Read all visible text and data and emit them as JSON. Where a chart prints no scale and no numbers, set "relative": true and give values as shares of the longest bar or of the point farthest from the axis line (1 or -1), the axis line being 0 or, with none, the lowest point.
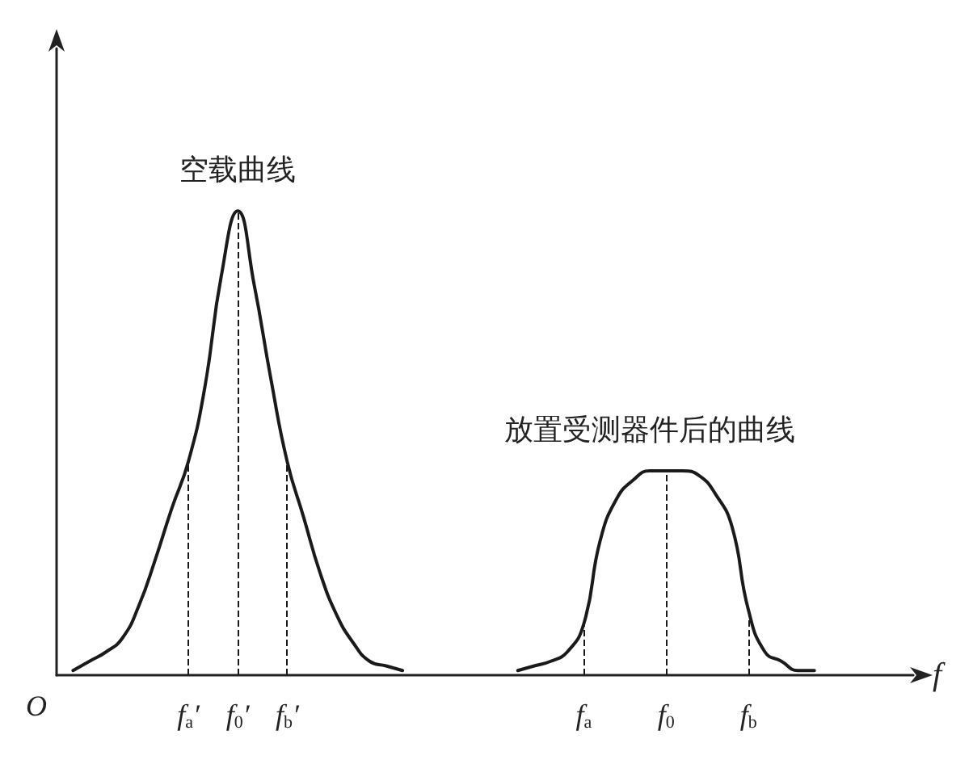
{
  "chart_data": {
    "type": "line",
    "relative": true,
    "xlabel": "f",
    "annotations": [
      "O"
    ],
    "categories": [
      null,
      null,
      null,
      null,
      null,
      null,
      null,
      null,
      "f$_{a}$′",
      null,
      null,
      "f$_{0}$′",
      null,
      null,
      "f$_{b}$′",
      null,
      null,
      null,
      null,
      null,
      null,
      null,
      null,
      null,
      null,
      null,
      null,
      null,
      null,
      null,
      null,
      null,
      "f$_{a}$",
      null,
      null,
      null,
      null,
      "f$_{0}$",
      null,
      null,
      null,
      null,
      "f$_{b}$",
      null,
      null,
      null,
      null,
      null,
      null,
      null,
      null,
      null,
      null
    ],
    "series": [
      {
        "name": "空载曲线",
        "color": "#1a1a1a",
        "values": [
          null,
          0.01,
          0.03,
          0.05,
          0.08,
          0.15,
          0.25,
          0.36,
          0.46,
          0.62,
          0.86,
          1,
          0.84,
          0.64,
          0.46,
          0.34,
          0.22,
          0.13,
          0.07,
          0.03,
          0.02,
          0.01,
          null,
          null,
          null,
          null,
          null,
          null,
          null,
          null,
          null,
          null,
          null,
          null,
          null,
          null,
          null,
          null,
          null,
          null,
          null,
          null,
          null,
          null,
          null,
          null,
          null,
          null,
          null,
          null,
          null,
          null,
          null
        ]
      },
      {
        "name": "放置受测器件后的曲线",
        "color": "#1a1a1a",
        "values": [
          null,
          null,
          null,
          null,
          null,
          null,
          null,
          null,
          null,
          null,
          null,
          null,
          null,
          null,
          null,
          null,
          null,
          null,
          null,
          null,
          null,
          null,
          null,
          null,
          null,
          null,
          null,
          null,
          0.01,
          0.02,
          0.03,
          0.05,
          0.11,
          0.29,
          0.38,
          0.42,
          0.44,
          0.44,
          0.44,
          0.43,
          0.39,
          0.32,
          0.14,
          0.05,
          0.03,
          0.01,
          0.01,
          null,
          null,
          null,
          null,
          null,
          null
        ]
      }
    ],
    "ref_lines": [
      {
        "axis": "x",
        "value": "f$_{a}$′",
        "line_style": "dashed"
      },
      {
        "axis": "x",
        "value": "f$_{0}$′",
        "line_style": "dashed"
      },
      {
        "axis": "x",
        "value": "f$_{b}$′",
        "line_style": "dashed"
      },
      {
        "axis": "x",
        "value": "f$_{a}$",
        "line_style": "dashed"
      },
      {
        "axis": "x",
        "value": "f$_{0}$",
        "line_style": "dashed"
      },
      {
        "axis": "x",
        "value": "f$_{b}$",
        "line_style": "dashed"
      }
    ],
    "grid": false,
    "legend": false,
    "marker": "none",
    "line_style": "solid"
  }
}
